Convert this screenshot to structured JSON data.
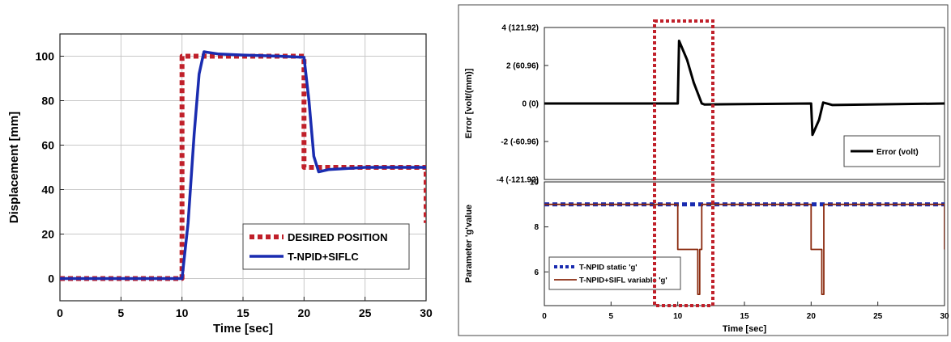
{
  "chart_data": [
    {
      "type": "line",
      "xlabel": "Time [sec]",
      "ylabel": "Displacement [mm]",
      "xlim": [
        0,
        30
      ],
      "ylim": [
        -10,
        110
      ],
      "xticks": [
        "0",
        "5",
        "10",
        "15",
        "20",
        "25",
        "30"
      ],
      "yticks": [
        "0",
        "20",
        "40",
        "60",
        "80",
        "100"
      ],
      "grid": true,
      "legend_position": "bottom-right",
      "series": [
        {
          "name": "DESIRED POSITION",
          "color": "#c0202a",
          "style": "dotted",
          "x": [
            0,
            10,
            10,
            20,
            20,
            30,
            30
          ],
          "y": [
            0,
            0,
            100,
            100,
            50,
            50,
            25
          ]
        },
        {
          "name": "T-NPID+SIFLC",
          "color": "#1a2cb0",
          "style": "solid",
          "x": [
            0,
            10,
            10.5,
            11,
            11.4,
            11.8,
            13,
            15,
            18,
            20,
            20.4,
            20.8,
            21.2,
            22,
            25,
            30
          ],
          "y": [
            0,
            0,
            25,
            65,
            92,
            102,
            101,
            100.5,
            100,
            99.5,
            80,
            55,
            48,
            49,
            50,
            50
          ]
        }
      ]
    },
    {
      "type": "line",
      "xlabel": "",
      "ylabel": "Error [volt/(mm)]",
      "xlim": [
        0,
        30
      ],
      "ylim": [
        -4,
        4
      ],
      "yticks": [
        "4 (121.92)",
        "2 (60.96)",
        "0 (0)",
        "-2 (-60.96)",
        "-4 (-121.92)"
      ],
      "grid": false,
      "legend_position": "bottom-right",
      "series": [
        {
          "name": "Error (volt)",
          "color": "#000000",
          "style": "solid",
          "x": [
            0,
            10,
            10.1,
            10.7,
            11.2,
            11.8,
            12,
            20,
            20.1,
            20.6,
            20.9,
            21.6,
            30
          ],
          "y": [
            0,
            0,
            3.3,
            2.3,
            1.1,
            0,
            -0.05,
            0,
            -1.65,
            -0.85,
            0.05,
            -0.08,
            0
          ]
        }
      ]
    },
    {
      "type": "line",
      "xlabel": "Time [sec]",
      "ylabel": "Parameter 'g'value",
      "xlim": [
        0,
        30
      ],
      "ylim": [
        4.5,
        10
      ],
      "xticks": [
        "0",
        "5",
        "10",
        "15",
        "20",
        "25",
        "30"
      ],
      "yticks": [
        "10",
        "8",
        "6"
      ],
      "grid": false,
      "legend_position": "bottom-left",
      "series": [
        {
          "name": "T-NPID static 'g'",
          "color": "#1a2cb0",
          "style": "dotted",
          "x": [
            0,
            30
          ],
          "y": [
            9,
            9
          ]
        },
        {
          "name": "T-NPID+SIFL variable 'g'",
          "color": "#8a2a0e",
          "style": "solid",
          "x": [
            0,
            10,
            10,
            11.5,
            11.5,
            11.65,
            11.65,
            11.8,
            11.8,
            20,
            20,
            20.8,
            20.8,
            20.95,
            20.95,
            30,
            30
          ],
          "y": [
            9,
            9,
            7,
            7,
            5,
            5,
            7,
            7,
            9,
            9,
            7,
            7,
            5,
            5,
            9,
            9,
            7
          ]
        }
      ]
    }
  ]
}
